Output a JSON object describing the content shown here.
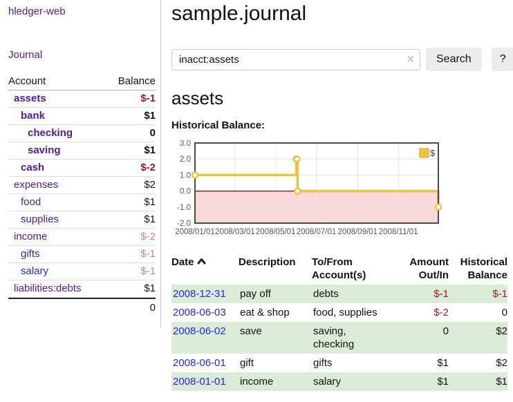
{
  "brand": "hledger-web",
  "nav": {
    "journal_label": "Journal"
  },
  "sidebar": {
    "header": {
      "account": "Account",
      "balance": "Balance"
    },
    "accounts": [
      {
        "name": "assets",
        "balance": "$-1",
        "level": 1,
        "strong": true
      },
      {
        "name": "bank",
        "balance": "$1",
        "level": 2,
        "strong": true
      },
      {
        "name": "checking",
        "balance": "0",
        "level": 3,
        "strong": true
      },
      {
        "name": "saving",
        "balance": "$1",
        "level": 3,
        "strong": true
      },
      {
        "name": "cash",
        "balance": "$-2",
        "level": 2,
        "strong": true
      },
      {
        "name": "expenses",
        "balance": "$2",
        "level": 1,
        "strong": false
      },
      {
        "name": "food",
        "balance": "$1",
        "level": 2,
        "strong": false
      },
      {
        "name": "supplies",
        "balance": "$1",
        "level": 2,
        "strong": false
      },
      {
        "name": "income",
        "balance": "$-2",
        "level": 1,
        "strong": false
      },
      {
        "name": "gifts",
        "balance": "$-1",
        "level": 2,
        "strong": false
      },
      {
        "name": "salary",
        "balance": "$-1",
        "level": 2,
        "strong": false,
        "blue": true
      },
      {
        "name": "liabilities:debts",
        "balance": "$1",
        "level": 1,
        "strong": false
      }
    ],
    "total": "0"
  },
  "header": {
    "title": "sample.journal"
  },
  "search": {
    "value": "inacct:assets",
    "clear_icon": "×",
    "button_label": "Search",
    "help_label": "?"
  },
  "main": {
    "account_title": "assets",
    "chart_title": "Historical Balance:"
  },
  "chart_data": {
    "type": "line",
    "title": "Historical Balance:",
    "step": true,
    "xlim": [
      "2008-01-01",
      "2008-12-31"
    ],
    "ylim": [
      -2,
      3
    ],
    "grid": true,
    "legend_position": "top-right",
    "series": [
      {
        "name": "$",
        "color": "#edc240",
        "points": [
          [
            "2008-01-01",
            1
          ],
          [
            "2008-06-01",
            2
          ],
          [
            "2008-06-02",
            2
          ],
          [
            "2008-06-03",
            0
          ],
          [
            "2008-12-31",
            -1
          ]
        ]
      }
    ],
    "x_ticks": [
      {
        "date": "2008-01-01",
        "label": "2008/01/01"
      },
      {
        "date": "2008-03-01",
        "label": "2008/03/01"
      },
      {
        "date": "2008-05-01",
        "label": "2008/05/01"
      },
      {
        "date": "2008-07-01",
        "label": "2008/07/01"
      },
      {
        "date": "2008-09-01",
        "label": "2008/09/01"
      },
      {
        "date": "2008-11-01",
        "label": "2008/11/01"
      }
    ],
    "y_ticks": [
      {
        "v": 3,
        "label": "3.0"
      },
      {
        "v": 2,
        "label": "2.0"
      },
      {
        "v": 1,
        "label": "1.0"
      },
      {
        "v": 0,
        "label": "0.0"
      },
      {
        "v": -1,
        "label": "-1.0"
      },
      {
        "v": -2,
        "label": "-2.0"
      }
    ],
    "negative_region_color": "#f9d9d9",
    "zero_line_color": "#8b0000"
  },
  "register": {
    "columns": [
      {
        "l1": "Date",
        "l2": ""
      },
      {
        "l1": "Description",
        "l2": ""
      },
      {
        "l1": "To/From",
        "l2": "Account(s)"
      },
      {
        "l1": "Amount",
        "l2": "Out/In"
      },
      {
        "l1": "Historical",
        "l2": "Balance"
      }
    ],
    "rows": [
      {
        "date": "2008-12-31",
        "description": "pay off",
        "accounts": "debts",
        "amount": "$-1",
        "balance": "$-1"
      },
      {
        "date": "2008-06-03",
        "description": "eat & shop",
        "accounts": "food, supplies",
        "amount": "$-2",
        "balance": "0"
      },
      {
        "date": "2008-06-02",
        "description": "save",
        "accounts": "saving, checking",
        "amount": "0",
        "balance": "$2"
      },
      {
        "date": "2008-06-01",
        "description": "gift",
        "accounts": "gifts",
        "amount": "$1",
        "balance": "$2"
      },
      {
        "date": "2008-01-01",
        "description": "income",
        "accounts": "salary",
        "amount": "$1",
        "balance": "$1"
      }
    ]
  }
}
